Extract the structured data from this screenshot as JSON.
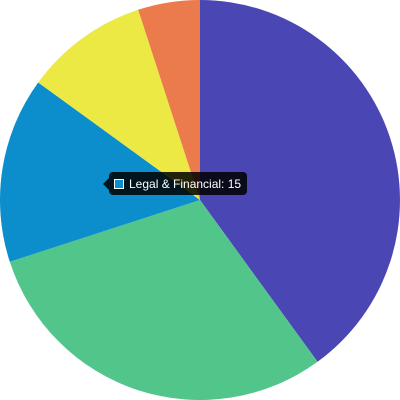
{
  "chart_data": {
    "type": "pie",
    "title": "",
    "slices": [
      {
        "label": "",
        "value": 40,
        "color": "#4a47b5"
      },
      {
        "label": "",
        "value": 30,
        "color": "#52c68a"
      },
      {
        "label": "Legal & Financial",
        "value": 15,
        "color": "#0b8ecb"
      },
      {
        "label": "",
        "value": 10,
        "color": "#ece844"
      },
      {
        "label": "",
        "value": 5,
        "color": "#eb7a4d"
      }
    ],
    "legend": "none"
  },
  "tooltip": {
    "text": "Legal & Financial: 15",
    "color": "#0b8ecb"
  }
}
